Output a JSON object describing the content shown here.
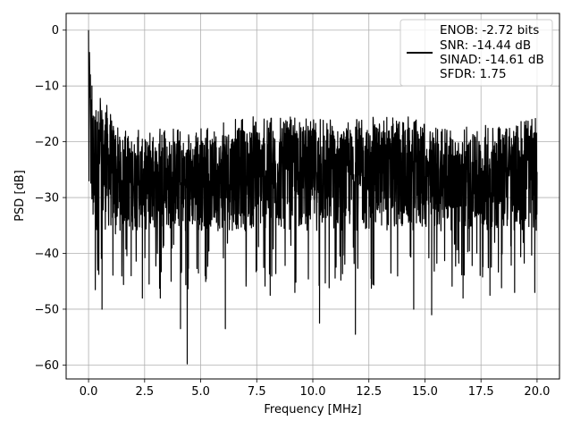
{
  "chart_data": {
    "type": "line",
    "xlabel": "Frequency [MHz]",
    "ylabel": "PSD [dB]",
    "xlim": [
      -1.0,
      21.0
    ],
    "ylim": [
      -62.5,
      3.0
    ],
    "x_ticks": [
      0.0,
      2.5,
      5.0,
      7.5,
      10.0,
      12.5,
      15.0,
      17.5,
      20.0
    ],
    "x_tick_labels": [
      "0.0",
      "2.5",
      "5.0",
      "7.5",
      "10.0",
      "12.5",
      "15.0",
      "17.5",
      "20.0"
    ],
    "y_ticks": [
      0,
      -10,
      -20,
      -30,
      -40,
      -50,
      -60
    ],
    "y_tick_labels": [
      "0",
      "−10",
      "−20",
      "−30",
      "−40",
      "−50",
      "−60"
    ],
    "grid": true,
    "legend_position": "upper-right",
    "line_color": "#000000",
    "legend": {
      "lines": [
        "ENOB: -2.72 bits",
        "SNR: -14.44 dB",
        "SINAD: -14.61 dB",
        "SFDR: 1.75"
      ]
    },
    "series": [
      {
        "x": [
          0.0,
          0.02,
          0.04,
          0.06,
          0.08,
          0.1,
          0.15,
          0.2,
          0.3,
          0.4,
          0.5,
          0.6,
          1.2,
          1.9,
          2.4,
          2.7,
          3.2,
          4.1,
          4.4,
          5.2,
          6.1,
          7.5,
          8.1,
          9.2,
          10.3,
          11.9,
          12.6,
          14.5,
          15.3,
          16.7,
          17.9,
          19.0,
          19.9,
          20.0
        ],
        "y": [
          0.0,
          -27.0,
          -4.0,
          -12.0,
          -8.0,
          -18.0,
          -10.0,
          -33.0,
          -46.5,
          -39.0,
          -22.0,
          -50.0,
          -36.5,
          -44.0,
          -48.0,
          -45.5,
          -48.0,
          -53.5,
          -59.8,
          -44.0,
          -53.5,
          -43.0,
          -47.5,
          -47.0,
          -52.5,
          -54.5,
          -44.5,
          -50.0,
          -51.0,
          -48.0,
          -47.5,
          -47.0,
          -47.0,
          -27.0
        ]
      }
    ],
    "noise_band": {
      "top_near_zero": -12.0,
      "top_elsewhere": -19.5,
      "bottom_typical": -36.0
    }
  }
}
